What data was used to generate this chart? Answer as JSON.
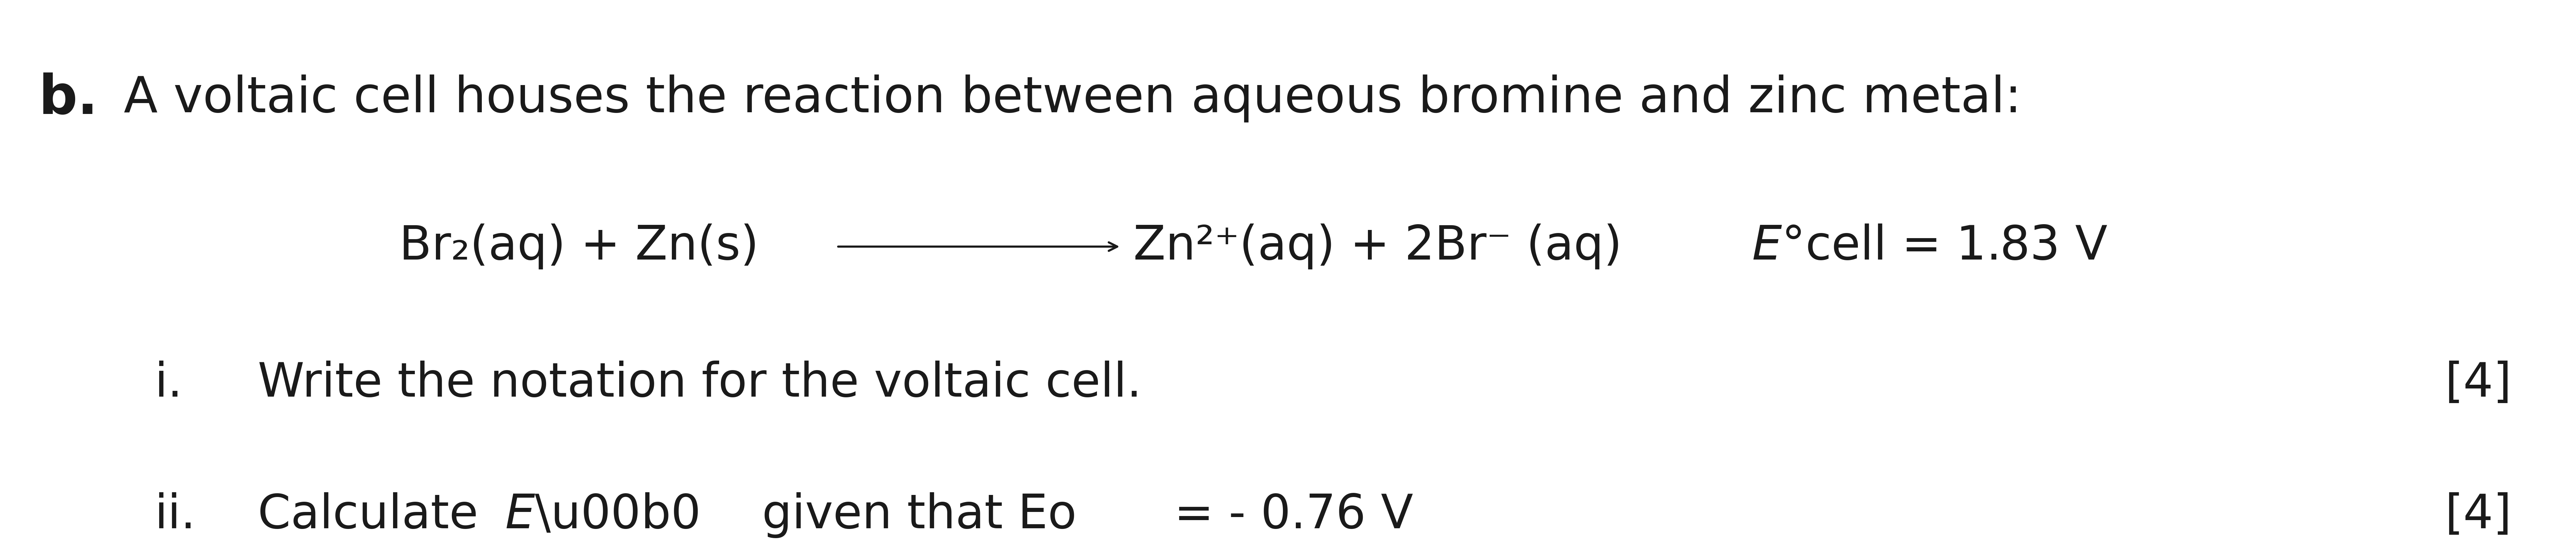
{
  "background_color": "#ffffff",
  "fig_width": 75.76,
  "fig_height": 16.11,
  "dpi": 100,
  "part_b_label": "b.",
  "part_b_text": "A voltaic cell houses the reaction between aqueous bromine and zinc metal:",
  "equation_left": "Br₂(aq) + Zn(s)",
  "equation_right": "Zn²⁺(aq) + 2Br⁻ (aq)",
  "sub_i_label": "i.",
  "sub_i_text": "Write the notation for the voltaic cell.",
  "sub_i_marks": "[4]",
  "sub_ii_label": "ii.",
  "sub_ii_marks": "[4]",
  "text_color": "#1a1a1a",
  "font_size_title": 105,
  "font_size_b_bold": 115,
  "font_size_eq": 100,
  "font_size_sub": 100,
  "font_size_subscript": 68,
  "font_size_marks": 100
}
